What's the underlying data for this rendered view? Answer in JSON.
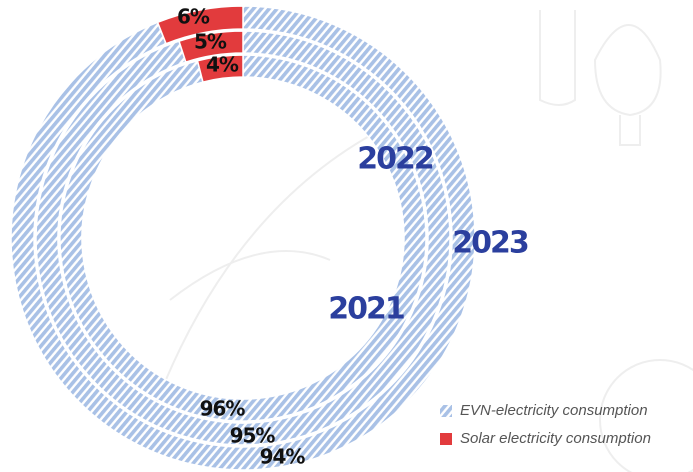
{
  "chart_data": {
    "type": "donut",
    "series": [
      {
        "name": "EVN-electricity consumption",
        "color": "#a9c1e6"
      },
      {
        "name": "Solar electricity consumption",
        "color": "#e23b3d"
      }
    ],
    "rings": [
      {
        "label": "2023",
        "values": [
          94,
          6
        ],
        "value_labels": [
          "94%",
          "6%"
        ]
      },
      {
        "label": "2022",
        "values": [
          95,
          5
        ],
        "value_labels": [
          "95%",
          "5%"
        ]
      },
      {
        "label": "2021",
        "values": [
          96,
          4
        ],
        "value_labels": [
          "96%",
          "4%"
        ]
      }
    ]
  }
}
